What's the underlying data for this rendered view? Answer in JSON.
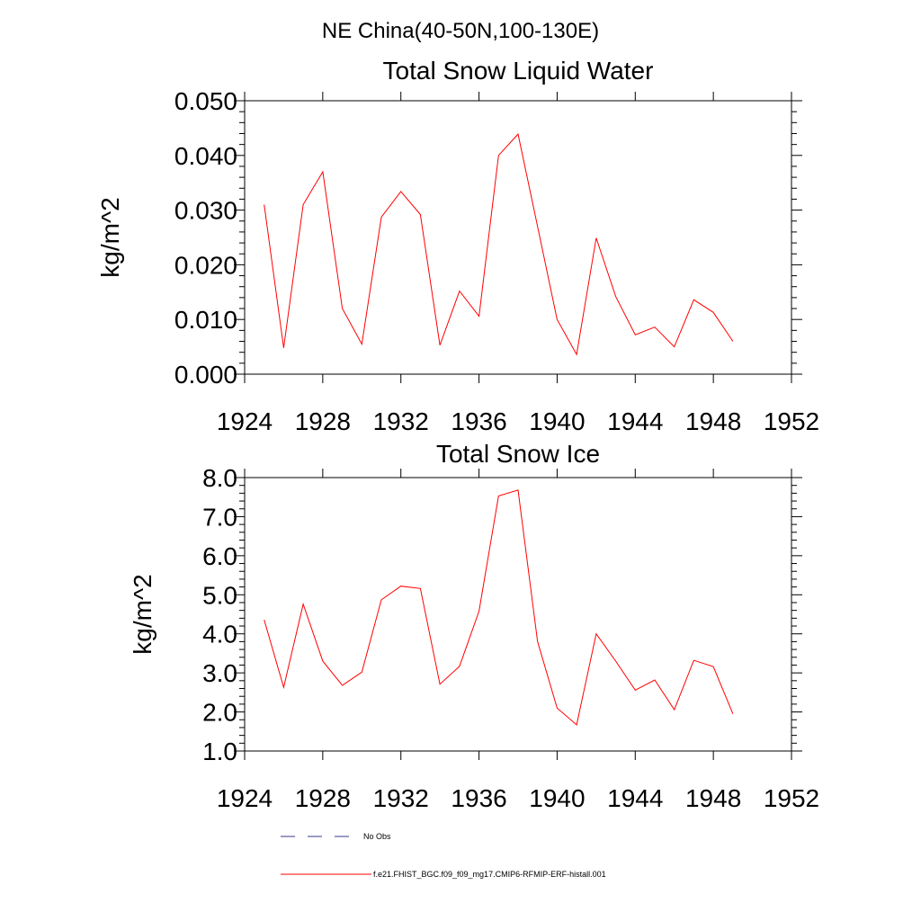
{
  "figure": {
    "suptitle": "NE China(40-50N,100-130E)"
  },
  "colors": {
    "series": "#ff0000",
    "axis": "#000000",
    "obs": "#3a3a8c"
  },
  "chart_data": [
    {
      "type": "line",
      "title": "Total Snow Liquid Water",
      "xlabel": "",
      "ylabel": "kg/m^2",
      "xlim": [
        1924,
        1952
      ],
      "ylim": [
        0.0,
        0.05
      ],
      "xticks": [
        1924,
        1928,
        1932,
        1936,
        1940,
        1944,
        1948,
        1952
      ],
      "xtick_labels": [
        "1924",
        "1928",
        "1932",
        "1936",
        "1940",
        "1944",
        "1948",
        "1952"
      ],
      "yticks": [
        0.0,
        0.01,
        0.02,
        0.03,
        0.04,
        0.05
      ],
      "ytick_labels": [
        "0.000",
        "0.010",
        "0.020",
        "0.030",
        "0.040",
        "0.050"
      ],
      "series": [
        {
          "name": "f.e21.FHIST_BGC.f09_f09_mg17.CMIP6-RFMIP-ERF-histall.001",
          "x": [
            1925,
            1926,
            1927,
            1928,
            1929,
            1930,
            1931,
            1932,
            1933,
            1934,
            1935,
            1936,
            1937,
            1938,
            1939,
            1940,
            1941,
            1942,
            1943,
            1944,
            1945,
            1946,
            1947,
            1948,
            1949
          ],
          "values": [
            0.031,
            0.0048,
            0.031,
            0.037,
            0.012,
            0.0055,
            0.0287,
            0.0334,
            0.0292,
            0.0053,
            0.0152,
            0.0106,
            0.04,
            0.0439,
            0.027,
            0.01,
            0.0036,
            0.0249,
            0.0142,
            0.0072,
            0.0086,
            0.005,
            0.0136,
            0.0113,
            0.006
          ]
        }
      ]
    },
    {
      "type": "line",
      "title": "Total Snow Ice",
      "xlabel": "",
      "ylabel": "kg/m^2",
      "xlim": [
        1924,
        1952
      ],
      "ylim": [
        1.0,
        8.0
      ],
      "xticks": [
        1924,
        1928,
        1932,
        1936,
        1940,
        1944,
        1948,
        1952
      ],
      "xtick_labels": [
        "1924",
        "1928",
        "1932",
        "1936",
        "1940",
        "1944",
        "1948",
        "1952"
      ],
      "yticks": [
        1.0,
        2.0,
        3.0,
        4.0,
        5.0,
        6.0,
        7.0,
        8.0
      ],
      "ytick_labels": [
        "1.0",
        "2.0",
        "3.0",
        "4.0",
        "5.0",
        "6.0",
        "7.0",
        "8.0"
      ],
      "series": [
        {
          "name": "f.e21.FHIST_BGC.f09_f09_mg17.CMIP6-RFMIP-ERF-histall.001",
          "x": [
            1925,
            1926,
            1927,
            1928,
            1929,
            1930,
            1931,
            1932,
            1933,
            1934,
            1935,
            1936,
            1937,
            1938,
            1939,
            1940,
            1941,
            1942,
            1943,
            1944,
            1945,
            1946,
            1947,
            1948,
            1949
          ],
          "values": [
            4.36,
            2.63,
            4.76,
            3.3,
            2.68,
            3.02,
            4.87,
            5.22,
            5.16,
            2.71,
            3.17,
            4.58,
            7.53,
            7.68,
            3.8,
            2.1,
            1.67,
            4.0,
            3.3,
            2.56,
            2.82,
            2.06,
            3.32,
            3.16,
            1.95
          ]
        }
      ]
    }
  ],
  "legend": {
    "items": [
      {
        "label": "No Obs",
        "style": "dashed",
        "color": "#3a3a8c"
      },
      {
        "label": "f.e21.FHIST_BGC.f09_f09_mg17.CMIP6-RFMIP-ERF-histall.001",
        "style": "solid",
        "color": "#ff0000"
      }
    ]
  }
}
